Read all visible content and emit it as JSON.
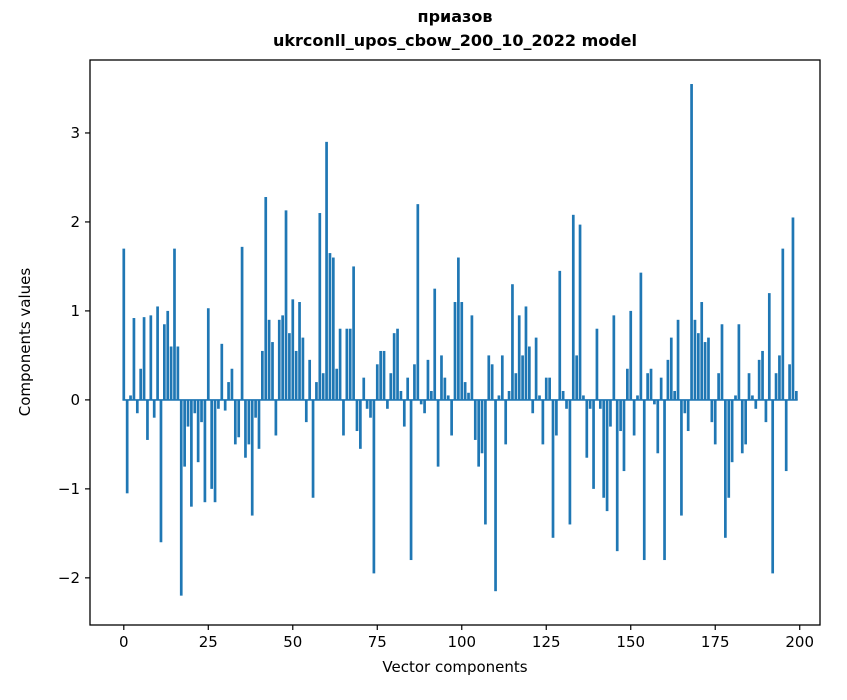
{
  "chart_data": {
    "type": "bar",
    "title": "приазов",
    "subtitle": "ukrconll_upos_cbow_200_10_2022 model",
    "xlabel": "Vector components",
    "ylabel": "Components values",
    "bar_color": "#1f77b4",
    "bar_width": 0.8,
    "grid": false,
    "legend": "none",
    "xlim": [
      -10,
      206
    ],
    "ylim": [
      -2.53,
      3.82
    ],
    "xticks": [
      0,
      25,
      50,
      75,
      100,
      125,
      150,
      175,
      200
    ],
    "yticks": [
      -2,
      -1,
      0,
      1,
      2,
      3
    ],
    "x_start": 0,
    "values": [
      1.7,
      -1.05,
      0.05,
      0.92,
      -0.15,
      0.35,
      0.93,
      -0.45,
      0.95,
      -0.2,
      1.05,
      -1.6,
      0.85,
      1.0,
      0.6,
      1.7,
      0.6,
      -2.2,
      -0.75,
      -0.3,
      -1.2,
      -0.15,
      -0.7,
      -0.25,
      -1.15,
      1.03,
      -1.0,
      -1.15,
      -0.1,
      0.63,
      -0.12,
      0.2,
      0.35,
      -0.5,
      -0.42,
      1.72,
      -0.65,
      -0.5,
      -1.3,
      -0.2,
      -0.55,
      0.55,
      2.28,
      0.9,
      0.65,
      -0.4,
      0.9,
      0.95,
      2.13,
      0.75,
      1.13,
      0.55,
      1.1,
      0.7,
      -0.25,
      0.45,
      -1.1,
      0.2,
      2.1,
      0.3,
      2.9,
      1.65,
      1.6,
      0.35,
      0.8,
      -0.4,
      0.8,
      0.8,
      1.5,
      -0.35,
      -0.55,
      0.25,
      -0.1,
      -0.2,
      -1.95,
      0.4,
      0.55,
      0.55,
      -0.1,
      0.3,
      0.75,
      0.8,
      0.1,
      -0.3,
      0.25,
      -1.8,
      0.4,
      2.2,
      -0.05,
      -0.15,
      0.45,
      0.1,
      1.25,
      -0.75,
      0.5,
      0.25,
      0.05,
      -0.4,
      1.1,
      1.6,
      1.1,
      0.2,
      0.08,
      0.95,
      -0.45,
      -0.75,
      -0.6,
      -1.4,
      0.5,
      0.4,
      -2.15,
      0.05,
      0.5,
      -0.5,
      0.1,
      1.3,
      0.3,
      0.95,
      0.5,
      1.05,
      0.6,
      -0.15,
      0.7,
      0.05,
      -0.5,
      0.25,
      0.25,
      -1.55,
      -0.4,
      1.45,
      0.1,
      -0.1,
      -1.4,
      2.08,
      0.5,
      1.97,
      0.05,
      -0.65,
      -0.1,
      -1.0,
      0.8,
      -0.1,
      -1.1,
      -1.25,
      -0.3,
      0.95,
      -1.7,
      -0.35,
      -0.8,
      0.35,
      1.0,
      -0.4,
      0.05,
      1.43,
      -1.8,
      0.3,
      0.35,
      -0.05,
      -0.6,
      0.25,
      -1.8,
      0.45,
      0.7,
      0.1,
      0.9,
      -1.3,
      -0.15,
      -0.35,
      3.55,
      0.9,
      0.75,
      1.1,
      0.65,
      0.7,
      -0.25,
      -0.5,
      0.3,
      0.85,
      -1.55,
      -1.1,
      -0.7,
      0.05,
      0.85,
      -0.6,
      -0.5,
      0.3,
      0.05,
      -0.1,
      0.45,
      0.55,
      -0.25,
      1.2,
      -1.95,
      0.3,
      0.5,
      1.7,
      -0.8,
      0.4,
      2.05,
      0.1
    ]
  }
}
